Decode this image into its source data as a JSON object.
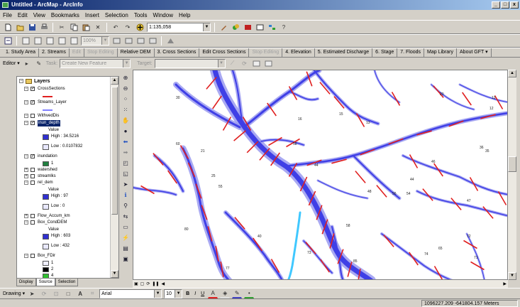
{
  "window": {
    "title": "Untitled - ArcMap - ArcInfo",
    "controls": [
      "_",
      "□",
      "x"
    ]
  },
  "menu": [
    "File",
    "Edit",
    "View",
    "Bookmarks",
    "Insert",
    "Selection",
    "Tools",
    "Window",
    "Help"
  ],
  "standard_toolbar": {
    "scale": "1:135,058"
  },
  "layout_toolbar": {
    "zoom": "100%"
  },
  "gft_toolbar": {
    "items": [
      {
        "label": "1. Study Area",
        "enabled": true
      },
      {
        "label": "2. Streams",
        "enabled": true
      },
      {
        "label": "Edit",
        "enabled": false
      },
      {
        "label": "Stop Editing",
        "enabled": false
      },
      {
        "label": "Relative DEM",
        "enabled": true
      },
      {
        "label": "3. Cross Sections",
        "enabled": true
      },
      {
        "label": "Edit Cross Sections",
        "enabled": true
      },
      {
        "label": "Stop Editing",
        "enabled": false
      },
      {
        "label": "4. Elevation",
        "enabled": true
      },
      {
        "label": "5. Estimated Discharge",
        "enabled": true
      },
      {
        "label": "6. Stage",
        "enabled": true
      },
      {
        "label": "7. Floods",
        "enabled": true
      },
      {
        "label": "Map Library",
        "enabled": true
      },
      {
        "label": "About GFT ▾",
        "enabled": true
      }
    ]
  },
  "editor_toolbar": {
    "editor_label": "Editor ▾",
    "task_label": "Task:",
    "task_value": "Create New Feature",
    "target_label": "Target:",
    "target_value": ""
  },
  "toc": {
    "root": "Layers",
    "rows": [
      {
        "text": "CrossSections",
        "kind": "layer",
        "checked": true,
        "expanded": true
      },
      {
        "text": "Streams_Layer",
        "kind": "layer",
        "checked": true,
        "expanded": true
      },
      {
        "text": "WithvedDis",
        "kind": "layer",
        "checked": false,
        "expanded": true
      },
      {
        "text": "inun_depth",
        "kind": "layer",
        "checked": true,
        "expanded": true,
        "selected": true
      },
      {
        "text": "Value",
        "kind": "label"
      },
      {
        "text": "High : 34.5216",
        "kind": "legend"
      },
      {
        "text": "Low : 0.0107832",
        "kind": "legend"
      },
      {
        "text": "inundation",
        "kind": "layer",
        "checked": true,
        "expanded": true
      },
      {
        "text": "1",
        "kind": "legend"
      },
      {
        "text": "watershed",
        "kind": "layer",
        "checked": false,
        "expanded": false
      },
      {
        "text": "streamlks",
        "kind": "layer",
        "checked": false,
        "expanded": false
      },
      {
        "text": "rel_dem",
        "kind": "layer",
        "checked": false,
        "expanded": true
      },
      {
        "text": "Value",
        "kind": "label"
      },
      {
        "text": "High : 97",
        "kind": "legend"
      },
      {
        "text": "Low : 0",
        "kind": "legend"
      },
      {
        "text": "Flow_Accum_km",
        "kind": "layer",
        "checked": false,
        "expanded": false
      },
      {
        "text": "Box_CondDEM",
        "kind": "layer",
        "checked": false,
        "expanded": true
      },
      {
        "text": "Value",
        "kind": "label"
      },
      {
        "text": "High : 603",
        "kind": "legend"
      },
      {
        "text": "Low : 432",
        "kind": "legend"
      },
      {
        "text": "Box_FDir",
        "kind": "layer",
        "checked": false,
        "expanded": true
      },
      {
        "text": "1",
        "kind": "legend"
      },
      {
        "text": "2",
        "kind": "legend"
      },
      {
        "text": "4",
        "kind": "legend"
      }
    ],
    "tabs": [
      "Display",
      "Source",
      "Selection"
    ]
  },
  "map": {
    "segment_labels": [
      "30",
      "21",
      "60",
      "25",
      "16",
      "15",
      "12",
      "13",
      "20",
      "54",
      "48",
      "56",
      "44",
      "36",
      "44",
      "47",
      "46",
      "35",
      "77",
      "55",
      "58",
      "80",
      "58",
      "73",
      "74",
      "65",
      "85",
      "72",
      "71",
      "12",
      "40"
    ]
  },
  "drawing_toolbar": {
    "drawing_label": "Drawing ▾",
    "font": "Arial",
    "font_size": "10",
    "bold": "B",
    "italic": "I",
    "underline": "U"
  },
  "status": {
    "coordinates": "1096227.209  -641804.157 Meters"
  },
  "colors": {
    "stream": "#3f3fe6",
    "stream_light": "#9a9af0",
    "cross_section": "#e02020",
    "highlight": "#40c8ff"
  }
}
